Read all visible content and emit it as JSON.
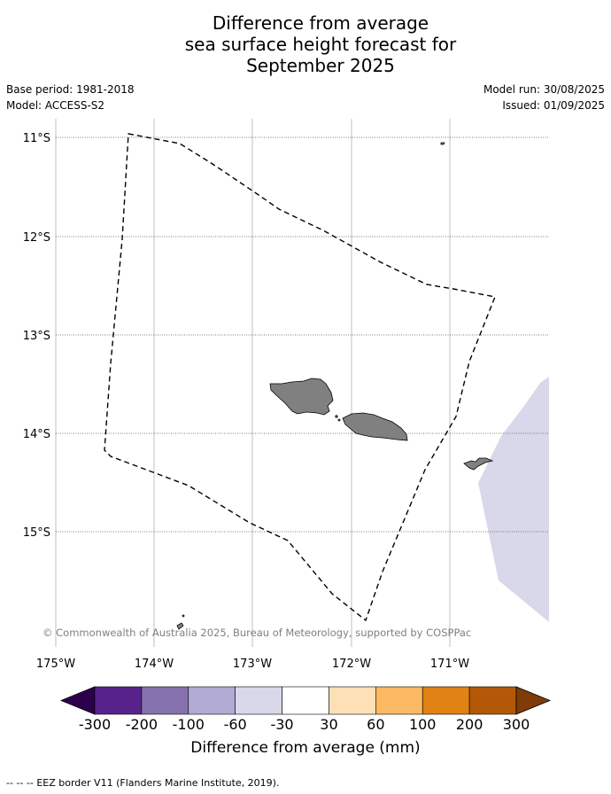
{
  "title": {
    "line1": "Difference from average",
    "line2": "sea surface height forecast for",
    "line3": "September 2025"
  },
  "meta": {
    "base_period": "Base period: 1981-2018",
    "model": "Model: ACCESS-S2",
    "model_run": "Model run: 30/08/2025",
    "issued": "Issued: 01/09/2025"
  },
  "map": {
    "lon_labels": [
      "175°W",
      "174°W",
      "173°W",
      "172°W",
      "171°W"
    ],
    "lat_labels": [
      "11°S",
      "12°S",
      "13°S",
      "14°S",
      "15°S"
    ],
    "copyright": "© Commonwealth of Australia 2025, Bureau of Meteorology, supported by COSPPac",
    "land_color": "#808080",
    "anomaly_color": "#d8d8ea"
  },
  "colorbar": {
    "title": "Difference from average (mm)",
    "tick_labels": [
      "-300",
      "-200",
      "-100",
      "-60",
      "-30",
      "30",
      "60",
      "100",
      "200",
      "300"
    ],
    "colors": [
      "#57238b",
      "#8571ae",
      "#b1aad2",
      "#d8d8ea",
      "#ffffff",
      "#fee0b6",
      "#fdb863",
      "#e08214",
      "#b35806"
    ],
    "extend_low": "#2d004b",
    "extend_high": "#7f3b08"
  },
  "footer": {
    "legend_symbol": "--  --  --",
    "legend_text": "EEZ border V11 (Flanders Marine Institute, 2019)."
  }
}
